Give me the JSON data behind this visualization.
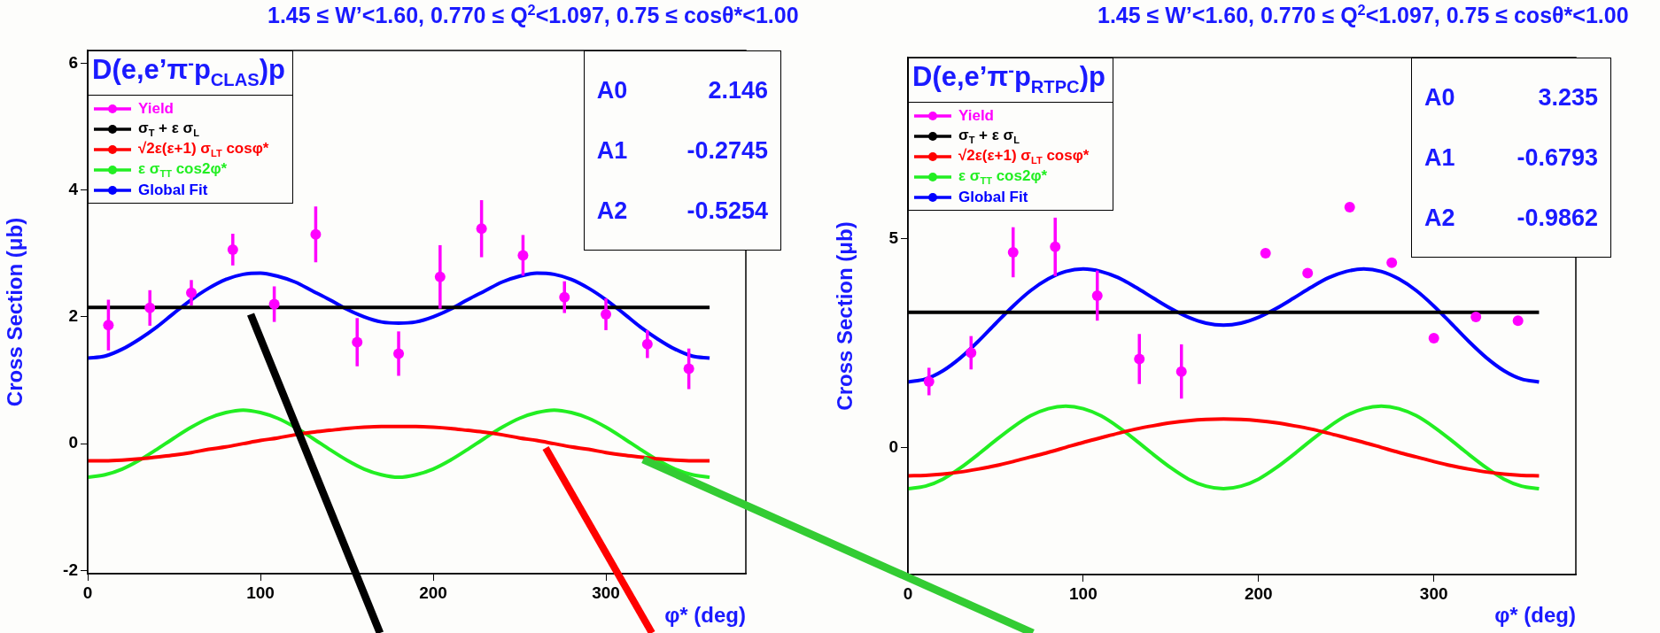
{
  "chart_data": [
    {
      "type": "line",
      "title": "1.45 ≤ W’<1.60, 0.770 ≤ Q$^{2}$<1.097, 0.75 ≤ cosθ*<1.00",
      "subtitle": "D(e,e’π$^{-}$p$_{CLAS}$)p",
      "xlabel": "φ* (deg)",
      "ylabel": "Cross Section (μb)",
      "xlim": [
        0,
        381
      ],
      "xticks": [
        0,
        100,
        200,
        300
      ],
      "ylim": [
        -2.05,
        6.2
      ],
      "yticks": [
        -2,
        0,
        2,
        4,
        6
      ],
      "legend": "top left",
      "annotations": [
        "A0 2.146",
        "A1 -0.2745",
        "A2 -0.5254"
      ],
      "series": [
        {
          "name": "Yield",
          "type": "scatter",
          "marker": "circle",
          "color": "#ff00ff",
          "x": [
            12,
            36,
            60,
            84,
            108,
            132,
            156,
            180,
            204,
            228,
            252,
            276,
            300,
            324,
            348
          ],
          "values": [
            1.87,
            2.14,
            2.38,
            3.06,
            2.2,
            3.3,
            1.6,
            1.42,
            2.63,
            3.39,
            2.97,
            2.31,
            2.04,
            1.57,
            1.18
          ],
          "errors": [
            0.4,
            0.28,
            0.2,
            0.25,
            0.28,
            0.44,
            0.38,
            0.35,
            0.5,
            0.45,
            0.32,
            0.25,
            0.25,
            0.22,
            0.32
          ]
        },
        {
          "name": "σ$_{T}$ + ε σ$_{L}$",
          "type": "line",
          "marker": "none",
          "color": "#000000",
          "x": [
            0,
            360
          ],
          "values": [
            2.15,
            2.15
          ]
        },
        {
          "name": "√2ε(ε+1) σ$_{LT}$ cosφ*",
          "type": "line",
          "marker": "none",
          "color": "#ff0000",
          "x": [
            0,
            10,
            20,
            30,
            40,
            50,
            60,
            70,
            80,
            90,
            100,
            110,
            120,
            130,
            140,
            150,
            160,
            170,
            180,
            190,
            200,
            210,
            220,
            230,
            240,
            250,
            260,
            270,
            280,
            290,
            300,
            310,
            320,
            330,
            340,
            350,
            360
          ],
          "values": [
            -0.27,
            -0.27,
            -0.26,
            -0.24,
            -0.21,
            -0.18,
            -0.14,
            -0.09,
            -0.05,
            0,
            0.05,
            0.09,
            0.14,
            0.18,
            0.21,
            0.24,
            0.26,
            0.27,
            0.27,
            0.27,
            0.26,
            0.24,
            0.21,
            0.18,
            0.14,
            0.09,
            0.05,
            0,
            -0.05,
            -0.09,
            -0.14,
            -0.18,
            -0.21,
            -0.24,
            -0.26,
            -0.27,
            -0.27
          ]
        },
        {
          "name": "ε σ$_{TT}$ cos2φ*",
          "type": "line",
          "marker": "none",
          "color": "#22ee22",
          "x": [
            0,
            10,
            20,
            30,
            40,
            50,
            60,
            70,
            80,
            90,
            100,
            110,
            120,
            130,
            140,
            150,
            160,
            170,
            180,
            190,
            200,
            210,
            220,
            230,
            240,
            250,
            260,
            270,
            280,
            290,
            300,
            310,
            320,
            330,
            340,
            350,
            360
          ],
          "values": [
            -0.53,
            -0.49,
            -0.4,
            -0.26,
            -0.09,
            0.09,
            0.26,
            0.4,
            0.49,
            0.53,
            0.49,
            0.4,
            0.26,
            0.09,
            -0.09,
            -0.26,
            -0.4,
            -0.49,
            -0.53,
            -0.49,
            -0.4,
            -0.26,
            -0.09,
            0.09,
            0.26,
            0.4,
            0.49,
            0.53,
            0.49,
            0.4,
            0.26,
            0.09,
            -0.09,
            -0.26,
            -0.4,
            -0.49,
            -0.53
          ]
        },
        {
          "name": "Global Fit",
          "type": "line",
          "marker": "none",
          "color": "#0000ff",
          "x": [
            0,
            10,
            20,
            30,
            40,
            50,
            60,
            70,
            80,
            90,
            100,
            110,
            120,
            130,
            140,
            150,
            160,
            170,
            180,
            190,
            200,
            210,
            220,
            230,
            240,
            250,
            260,
            270,
            280,
            290,
            300,
            310,
            320,
            330,
            340,
            350,
            360
          ],
          "values": [
            1.35,
            1.38,
            1.49,
            1.65,
            1.84,
            2.06,
            2.27,
            2.45,
            2.59,
            2.67,
            2.69,
            2.64,
            2.55,
            2.41,
            2.27,
            2.12,
            2.0,
            1.92,
            1.9,
            1.92,
            2.0,
            2.12,
            2.27,
            2.41,
            2.55,
            2.64,
            2.69,
            2.67,
            2.59,
            2.45,
            2.27,
            2.06,
            1.84,
            1.65,
            1.49,
            1.38,
            1.35
          ]
        }
      ]
    },
    {
      "type": "line",
      "title": "1.45 ≤ W’<1.60, 0.770 ≤ Q$^{2}$<1.097, 0.75 ≤ cosθ*<1.00",
      "subtitle": "D(e,e’π$^{-}$p$_{RTPC}$)p",
      "xlabel": "φ* (deg)",
      "ylabel": "Cross Section (μb)",
      "xlim": [
        0,
        381
      ],
      "xticks": [
        0,
        100,
        200,
        300
      ],
      "ylim": [
        -3.05,
        9.35
      ],
      "yticks": [
        0,
        5
      ],
      "legend": "top left",
      "annotations": [
        "A0 3.235",
        "A1 -0.6793",
        "A2 -0.9862"
      ],
      "series": [
        {
          "name": "Yield",
          "type": "scatter",
          "marker": "circle",
          "color": "#ff00ff",
          "x": [
            12,
            36,
            60,
            84,
            108,
            132,
            156,
            180,
            204,
            228,
            252,
            276,
            300,
            324,
            348
          ],
          "values": [
            1.58,
            2.27,
            4.68,
            4.81,
            3.64,
            2.12,
            1.82,
            null,
            4.66,
            4.18,
            5.76,
            4.43,
            2.62,
            3.13,
            3.04
          ],
          "errors": [
            0.33,
            0.4,
            0.6,
            0.7,
            0.6,
            0.6,
            0.65,
            null,
            null,
            null,
            null,
            null,
            null,
            null,
            null
          ]
        },
        {
          "name": "σ$_{T}$ + ε σ$_{L}$",
          "type": "line",
          "marker": "none",
          "color": "#000000",
          "x": [
            0,
            360
          ],
          "values": [
            3.24,
            3.24
          ]
        },
        {
          "name": "√2ε(ε+1) σ$_{LT}$ cosφ*",
          "type": "line",
          "marker": "none",
          "color": "#ff0000",
          "x": [
            0,
            10,
            20,
            30,
            40,
            50,
            60,
            70,
            80,
            90,
            100,
            110,
            120,
            130,
            140,
            150,
            160,
            170,
            180,
            190,
            200,
            210,
            220,
            230,
            240,
            250,
            260,
            270,
            280,
            290,
            300,
            310,
            320,
            330,
            340,
            350,
            360
          ],
          "values": [
            -0.68,
            -0.67,
            -0.64,
            -0.59,
            -0.52,
            -0.44,
            -0.34,
            -0.23,
            -0.12,
            0,
            0.12,
            0.23,
            0.34,
            0.44,
            0.52,
            0.59,
            0.64,
            0.67,
            0.68,
            0.67,
            0.64,
            0.59,
            0.52,
            0.44,
            0.34,
            0.23,
            0.12,
            0,
            -0.12,
            -0.23,
            -0.34,
            -0.44,
            -0.52,
            -0.59,
            -0.64,
            -0.67,
            -0.68
          ]
        },
        {
          "name": "ε σ$_{TT}$ cos2φ*",
          "type": "line",
          "marker": "none",
          "color": "#22ee22",
          "x": [
            0,
            10,
            20,
            30,
            40,
            50,
            60,
            70,
            80,
            90,
            100,
            110,
            120,
            130,
            140,
            150,
            160,
            170,
            180,
            190,
            200,
            210,
            220,
            230,
            240,
            250,
            260,
            270,
            280,
            290,
            300,
            310,
            320,
            330,
            340,
            350,
            360
          ],
          "values": [
            -0.99,
            -0.93,
            -0.76,
            -0.49,
            -0.17,
            0.17,
            0.49,
            0.76,
            0.93,
            0.99,
            0.93,
            0.76,
            0.49,
            0.17,
            -0.17,
            -0.49,
            -0.76,
            -0.93,
            -0.99,
            -0.93,
            -0.76,
            -0.49,
            -0.17,
            0.17,
            0.49,
            0.76,
            0.93,
            0.99,
            0.93,
            0.76,
            0.49,
            0.17,
            -0.17,
            -0.49,
            -0.76,
            -0.93,
            -0.99
          ]
        },
        {
          "name": "Global Fit",
          "type": "line",
          "marker": "none",
          "color": "#0000ff",
          "x": [
            0,
            10,
            20,
            30,
            40,
            50,
            60,
            70,
            80,
            90,
            100,
            110,
            120,
            130,
            140,
            150,
            160,
            170,
            180,
            190,
            200,
            210,
            220,
            230,
            240,
            250,
            260,
            270,
            280,
            290,
            300,
            310,
            320,
            330,
            340,
            350,
            360
          ],
          "values": [
            1.57,
            1.64,
            1.84,
            2.15,
            2.54,
            2.97,
            3.39,
            3.76,
            4.04,
            4.22,
            4.28,
            4.22,
            4.07,
            3.84,
            3.58,
            3.33,
            3.12,
            2.98,
            2.93,
            2.98,
            3.12,
            3.33,
            3.58,
            3.84,
            4.07,
            4.22,
            4.28,
            4.22,
            4.04,
            3.76,
            3.39,
            2.97,
            2.54,
            2.15,
            1.84,
            1.64,
            1.57
          ]
        }
      ]
    }
  ]
}
